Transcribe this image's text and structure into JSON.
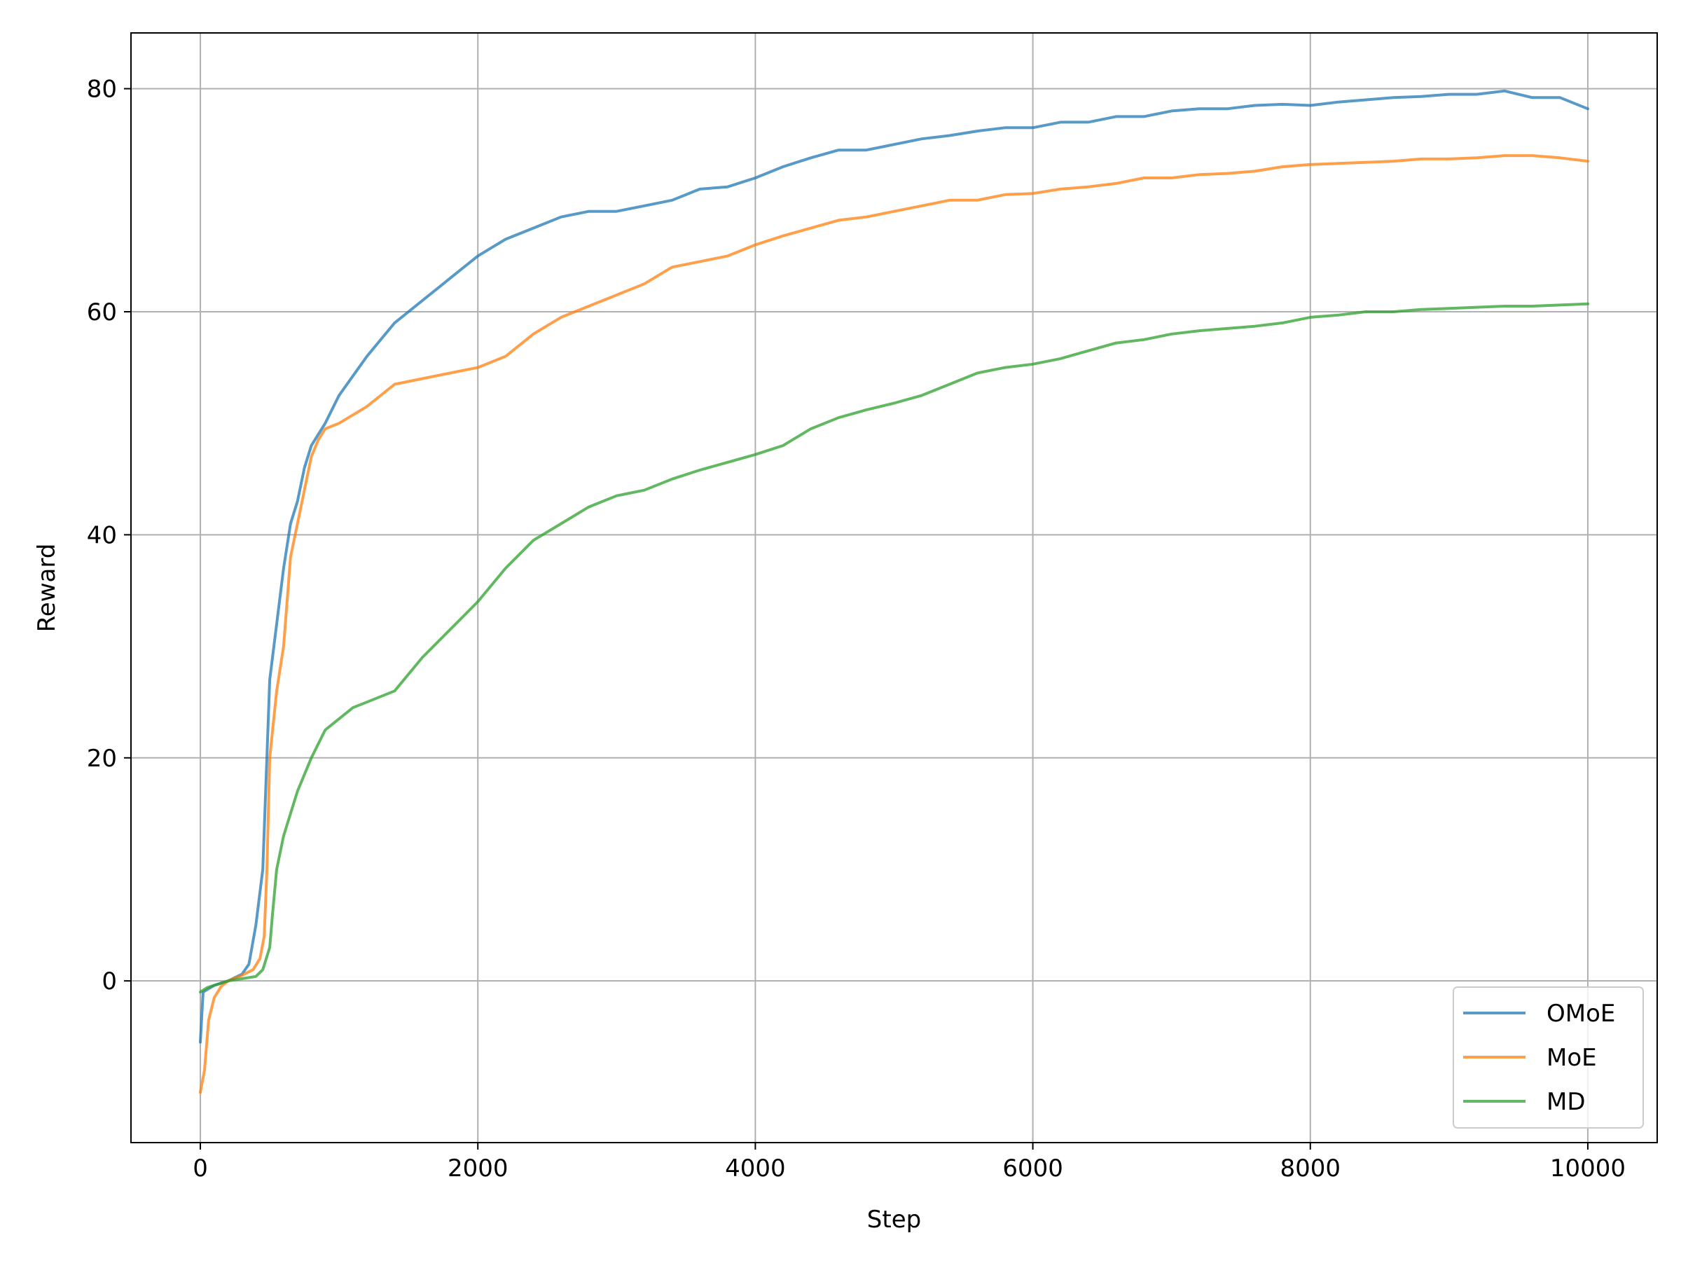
{
  "chart_data": {
    "type": "line",
    "title": "",
    "xlabel": "Step",
    "ylabel": "Reward",
    "xlim": [
      -500,
      10500
    ],
    "ylim": [
      -14.5,
      85
    ],
    "xticks": [
      0,
      2000,
      4000,
      6000,
      8000,
      10000
    ],
    "yticks": [
      0,
      20,
      40,
      60,
      80
    ],
    "grid": true,
    "legend_position": "lower-right",
    "series": [
      {
        "name": "OMoE",
        "color": "#1f77b4",
        "opacity": 0.75,
        "points": [
          [
            0,
            -5.5
          ],
          [
            20,
            -1
          ],
          [
            100,
            -0.4
          ],
          [
            200,
            0
          ],
          [
            300,
            0.6
          ],
          [
            350,
            1.5
          ],
          [
            400,
            5
          ],
          [
            450,
            10
          ],
          [
            500,
            27
          ],
          [
            550,
            32
          ],
          [
            600,
            37
          ],
          [
            650,
            41
          ],
          [
            700,
            43
          ],
          [
            750,
            46
          ],
          [
            800,
            48
          ],
          [
            900,
            50
          ],
          [
            1000,
            52.5
          ],
          [
            1200,
            56
          ],
          [
            1400,
            59
          ],
          [
            1600,
            61
          ],
          [
            1800,
            63
          ],
          [
            2000,
            65
          ],
          [
            2200,
            66.5
          ],
          [
            2400,
            67.5
          ],
          [
            2600,
            68.5
          ],
          [
            2800,
            69
          ],
          [
            3000,
            69
          ],
          [
            3200,
            69.5
          ],
          [
            3400,
            70
          ],
          [
            3600,
            71
          ],
          [
            3800,
            71.2
          ],
          [
            4000,
            72
          ],
          [
            4200,
            73
          ],
          [
            4400,
            73.8
          ],
          [
            4600,
            74.5
          ],
          [
            4800,
            74.5
          ],
          [
            5000,
            75
          ],
          [
            5200,
            75.5
          ],
          [
            5400,
            75.8
          ],
          [
            5600,
            76.2
          ],
          [
            5800,
            76.5
          ],
          [
            6000,
            76.5
          ],
          [
            6200,
            77
          ],
          [
            6400,
            77
          ],
          [
            6600,
            77.5
          ],
          [
            6800,
            77.5
          ],
          [
            7000,
            78
          ],
          [
            7200,
            78.2
          ],
          [
            7400,
            78.2
          ],
          [
            7600,
            78.5
          ],
          [
            7800,
            78.6
          ],
          [
            8000,
            78.5
          ],
          [
            8200,
            78.8
          ],
          [
            8400,
            79
          ],
          [
            8600,
            79.2
          ],
          [
            8800,
            79.3
          ],
          [
            9000,
            79.5
          ],
          [
            9200,
            79.5
          ],
          [
            9400,
            79.8
          ],
          [
            9600,
            79.2
          ],
          [
            9800,
            79.2
          ],
          [
            10000,
            78.2
          ]
        ]
      },
      {
        "name": "MoE",
        "color": "#ff7f0e",
        "opacity": 0.75,
        "points": [
          [
            0,
            -10
          ],
          [
            30,
            -8
          ],
          [
            60,
            -3.5
          ],
          [
            100,
            -1.5
          ],
          [
            150,
            -0.5
          ],
          [
            200,
            0
          ],
          [
            300,
            0.5
          ],
          [
            380,
            1
          ],
          [
            430,
            2
          ],
          [
            460,
            4
          ],
          [
            480,
            10
          ],
          [
            500,
            20
          ],
          [
            550,
            26
          ],
          [
            600,
            30
          ],
          [
            650,
            38
          ],
          [
            700,
            41
          ],
          [
            750,
            44
          ],
          [
            800,
            47
          ],
          [
            850,
            48.5
          ],
          [
            900,
            49.5
          ],
          [
            1000,
            50
          ],
          [
            1200,
            51.5
          ],
          [
            1400,
            53.5
          ],
          [
            1600,
            54
          ],
          [
            1800,
            54.5
          ],
          [
            2000,
            55
          ],
          [
            2200,
            56
          ],
          [
            2400,
            58
          ],
          [
            2600,
            59.5
          ],
          [
            2800,
            60.5
          ],
          [
            3000,
            61.5
          ],
          [
            3200,
            62.5
          ],
          [
            3400,
            64
          ],
          [
            3600,
            64.5
          ],
          [
            3800,
            65
          ],
          [
            4000,
            66
          ],
          [
            4200,
            66.8
          ],
          [
            4400,
            67.5
          ],
          [
            4600,
            68.2
          ],
          [
            4800,
            68.5
          ],
          [
            5000,
            69
          ],
          [
            5200,
            69.5
          ],
          [
            5400,
            70
          ],
          [
            5600,
            70
          ],
          [
            5800,
            70.5
          ],
          [
            6000,
            70.6
          ],
          [
            6200,
            71
          ],
          [
            6400,
            71.2
          ],
          [
            6600,
            71.5
          ],
          [
            6800,
            72
          ],
          [
            7000,
            72
          ],
          [
            7200,
            72.3
          ],
          [
            7400,
            72.4
          ],
          [
            7600,
            72.6
          ],
          [
            7800,
            73
          ],
          [
            8000,
            73.2
          ],
          [
            8200,
            73.3
          ],
          [
            8400,
            73.4
          ],
          [
            8600,
            73.5
          ],
          [
            8800,
            73.7
          ],
          [
            9000,
            73.7
          ],
          [
            9200,
            73.8
          ],
          [
            9400,
            74
          ],
          [
            9600,
            74
          ],
          [
            9800,
            73.8
          ],
          [
            10000,
            73.5
          ]
        ]
      },
      {
        "name": "MD",
        "color": "#2ca02c",
        "opacity": 0.75,
        "points": [
          [
            0,
            -1
          ],
          [
            50,
            -0.6
          ],
          [
            100,
            -0.4
          ],
          [
            200,
            0
          ],
          [
            300,
            0.2
          ],
          [
            400,
            0.4
          ],
          [
            450,
            1
          ],
          [
            500,
            3
          ],
          [
            520,
            6
          ],
          [
            550,
            10
          ],
          [
            600,
            13
          ],
          [
            700,
            17
          ],
          [
            800,
            20
          ],
          [
            900,
            22.5
          ],
          [
            1000,
            23.5
          ],
          [
            1100,
            24.5
          ],
          [
            1200,
            25
          ],
          [
            1400,
            26
          ],
          [
            1600,
            29
          ],
          [
            1800,
            31.5
          ],
          [
            2000,
            34
          ],
          [
            2200,
            37
          ],
          [
            2400,
            39.5
          ],
          [
            2600,
            41
          ],
          [
            2800,
            42.5
          ],
          [
            3000,
            43.5
          ],
          [
            3200,
            44
          ],
          [
            3400,
            45
          ],
          [
            3600,
            45.8
          ],
          [
            3800,
            46.5
          ],
          [
            4000,
            47.2
          ],
          [
            4200,
            48
          ],
          [
            4400,
            49.5
          ],
          [
            4600,
            50.5
          ],
          [
            4800,
            51.2
          ],
          [
            5000,
            51.8
          ],
          [
            5200,
            52.5
          ],
          [
            5400,
            53.5
          ],
          [
            5600,
            54.5
          ],
          [
            5800,
            55
          ],
          [
            6000,
            55.3
          ],
          [
            6200,
            55.8
          ],
          [
            6400,
            56.5
          ],
          [
            6600,
            57.2
          ],
          [
            6800,
            57.5
          ],
          [
            7000,
            58
          ],
          [
            7200,
            58.3
          ],
          [
            7400,
            58.5
          ],
          [
            7600,
            58.7
          ],
          [
            7800,
            59
          ],
          [
            8000,
            59.5
          ],
          [
            8200,
            59.7
          ],
          [
            8400,
            60
          ],
          [
            8600,
            60
          ],
          [
            8800,
            60.2
          ],
          [
            9000,
            60.3
          ],
          [
            9200,
            60.4
          ],
          [
            9400,
            60.5
          ],
          [
            9600,
            60.5
          ],
          [
            9800,
            60.6
          ],
          [
            10000,
            60.7
          ]
        ]
      }
    ]
  }
}
